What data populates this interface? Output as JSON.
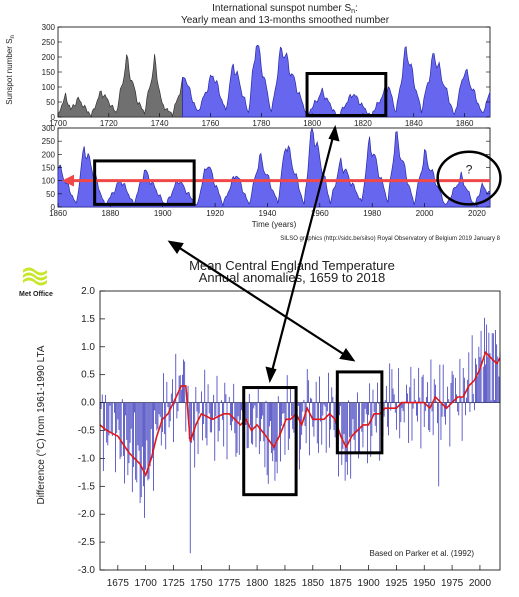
{
  "colors": {
    "spot_fill": "#6666ee",
    "spot_stroke": "#2a2aa8",
    "early_fill": "#707070",
    "early_stroke": "#333333",
    "temp_bar": "#3b3bbd",
    "smooth_line": "#e01818",
    "ref_arrow": "#f04848",
    "annotation": "#000000",
    "logo_green": "#c8e62a"
  },
  "logo": {
    "text": "Met Office"
  },
  "chart_data": [
    {
      "type": "area",
      "title": "International sunspot number S",
      "title_subscript": "n",
      "title_suffix": ":",
      "subtitle": "Yearly mean and 13-months smoothed number",
      "ylabel": "Sunspot number S",
      "ylabel_subscript": "n",
      "xlabel": "",
      "xlim": [
        1700,
        1870
      ],
      "ylim": [
        0,
        300
      ],
      "yticks": [
        "0",
        "50",
        "100",
        "150",
        "200",
        "250",
        "300"
      ],
      "xticks": [
        "1700",
        "1720",
        "1740",
        "1760",
        "1780",
        "1800",
        "1820",
        "1840",
        "1860"
      ],
      "gray_until": 1749,
      "series": [
        {
          "x": [
            1700,
            1703,
            1705,
            1708,
            1713,
            1717,
            1720,
            1723,
            1727,
            1731,
            1734,
            1738,
            1741,
            1745,
            1750,
            1752,
            1755,
            1761,
            1766,
            1769,
            1775,
            1778,
            1784,
            1788,
            1798,
            1804,
            1810,
            1816,
            1823,
            1830,
            1833,
            1837,
            1843,
            1848,
            1856,
            1860,
            1867,
            1870
          ],
          "values": [
            8,
            70,
            25,
            60,
            4,
            85,
            50,
            13,
            190,
            60,
            12,
            185,
            40,
            8,
            140,
            80,
            15,
            145,
            20,
            180,
            12,
            255,
            15,
            235,
            5,
            85,
            0,
            80,
            2,
            105,
            15,
            230,
            18,
            210,
            5,
            160,
            10,
            80
          ]
        }
      ],
      "highlight": {
        "x_range": [
          1798,
          1829
        ],
        "y_range": [
          5,
          145
        ]
      }
    },
    {
      "type": "area",
      "title": "",
      "xlabel": "Time (years)",
      "ylabel": "",
      "xlim": [
        1860,
        2025
      ],
      "ylim": [
        0,
        300
      ],
      "yticks": [
        "0",
        "50",
        "100",
        "150",
        "200",
        "250",
        "300"
      ],
      "xticks": [
        "1860",
        "1880",
        "1900",
        "1920",
        "1940",
        "1960",
        "1980",
        "2000",
        "2020"
      ],
      "reference_level": 100,
      "series": [
        {
          "x": [
            1860,
            1867,
            1870,
            1878,
            1884,
            1889,
            1893,
            1901,
            1906,
            1913,
            1917,
            1923,
            1928,
            1933,
            1937,
            1944,
            1947,
            1954,
            1957,
            1964,
            1968,
            1976,
            1979,
            1986,
            1989,
            1996,
            2000,
            2008,
            2014,
            2019,
            2022,
            2025
          ],
          "values": [
            160,
            10,
            230,
            5,
            105,
            10,
            140,
            5,
            105,
            3,
            170,
            10,
            130,
            8,
            190,
            15,
            250,
            8,
            310,
            15,
            170,
            18,
            250,
            20,
            270,
            10,
            200,
            5,
            115,
            5,
            80,
            50
          ]
        }
      ],
      "highlights": [
        {
          "x_range": [
            1874,
            1912
          ],
          "y_range": [
            10,
            175
          ]
        }
      ],
      "ellipse": {
        "x_range": [
          2005,
          2029
        ],
        "y_range": [
          10,
          210
        ],
        "label": "?"
      },
      "credit": "SILSO graphics (http://sidc.be/silso)  Royal Observatory of Belgium  2019 January 8"
    },
    {
      "type": "bar",
      "title": "Mean Central England Temperature",
      "subtitle": "Annual anomalies, 1659 to 2018",
      "ylabel": "Difference (°C) from 1961-1990 LTA",
      "xlabel": "",
      "xlim": [
        1659,
        2018
      ],
      "ylim": [
        -3.0,
        2.0
      ],
      "yticks": [
        "-3.0",
        "-2.5",
        "-2.0",
        "-1.5",
        "-1.0",
        "-0.5",
        "0.0",
        "0.5",
        "1.0",
        "1.5",
        "2.0"
      ],
      "xticks": [
        "1675",
        "1700",
        "1725",
        "1750",
        "1775",
        "1800",
        "1825",
        "1850",
        "1875",
        "1900",
        "1925",
        "1950",
        "1975",
        "2000"
      ],
      "annual_anomalies": {
        "1659": -0.4,
        "1670": -0.6,
        "1684": -1.3,
        "1695": -1.8,
        "1698": -1.5,
        "1700": -1.2,
        "1710": -0.5,
        "1733": 0.5,
        "1740": -2.7,
        "1750": 0.2,
        "1760": -0.3,
        "1775": 0.1,
        "1782": -0.9,
        "1790": -0.4,
        "1799": -0.8,
        "1809": -1.3,
        "1816": -1.4,
        "1820": -0.6,
        "1834": 0.3,
        "1838": -1.2,
        "1846": 0.4,
        "1855": -0.9,
        "1868": 0.1,
        "1879": -1.4,
        "1885": -0.6,
        "1893": 0.0,
        "1903": -0.6,
        "1911": 0.0,
        "1921": 0.6,
        "1930": -0.1,
        "1949": 0.5,
        "1963": -1.5,
        "1976": 0.5,
        "1990": 0.9,
        "1999": 1.0,
        "2006": 1.4,
        "2014": 1.3,
        "2018": 0.9
      },
      "smoothed": {
        "x": [
          1659,
          1665,
          1675,
          1685,
          1690,
          1695,
          1700,
          1705,
          1710,
          1715,
          1720,
          1725,
          1732,
          1736,
          1740,
          1745,
          1750,
          1760,
          1770,
          1775,
          1780,
          1785,
          1790,
          1795,
          1800,
          1808,
          1815,
          1820,
          1826,
          1830,
          1835,
          1840,
          1845,
          1850,
          1855,
          1860,
          1865,
          1870,
          1875,
          1880,
          1885,
          1890,
          1895,
          1900,
          1905,
          1910,
          1915,
          1920,
          1925,
          1930,
          1935,
          1940,
          1945,
          1950,
          1955,
          1960,
          1965,
          1970,
          1975,
          1980,
          1985,
          1990,
          1995,
          2000,
          2005,
          2010,
          2015,
          2018
        ],
        "values": [
          -0.4,
          -0.5,
          -0.6,
          -0.9,
          -1.0,
          -1.1,
          -1.3,
          -1.0,
          -0.6,
          -0.3,
          -0.2,
          0.0,
          0.3,
          0.3,
          -0.7,
          -0.4,
          -0.2,
          -0.3,
          -0.2,
          -0.2,
          -0.3,
          -0.4,
          -0.3,
          -0.5,
          -0.4,
          -0.6,
          -0.8,
          -0.6,
          -0.3,
          -0.3,
          -0.2,
          -0.4,
          -0.1,
          -0.3,
          -0.3,
          -0.3,
          -0.2,
          -0.3,
          -0.6,
          -0.8,
          -0.6,
          -0.5,
          -0.4,
          -0.4,
          -0.2,
          -0.2,
          -0.1,
          -0.1,
          -0.1,
          0.0,
          0.0,
          0.0,
          0.0,
          0.0,
          -0.1,
          0.1,
          0.0,
          -0.1,
          0.0,
          0.1,
          0.1,
          0.3,
          0.4,
          0.6,
          0.9,
          0.8,
          0.7,
          0.8
        ]
      },
      "highlights": [
        {
          "x_range": [
            1788,
            1835
          ],
          "y_range": [
            -1.65,
            0.27
          ]
        },
        {
          "x_range": [
            1872,
            1912
          ],
          "y_range": [
            -0.9,
            0.55
          ]
        }
      ],
      "annotation": "Based on Parker et al. (1992)"
    }
  ]
}
